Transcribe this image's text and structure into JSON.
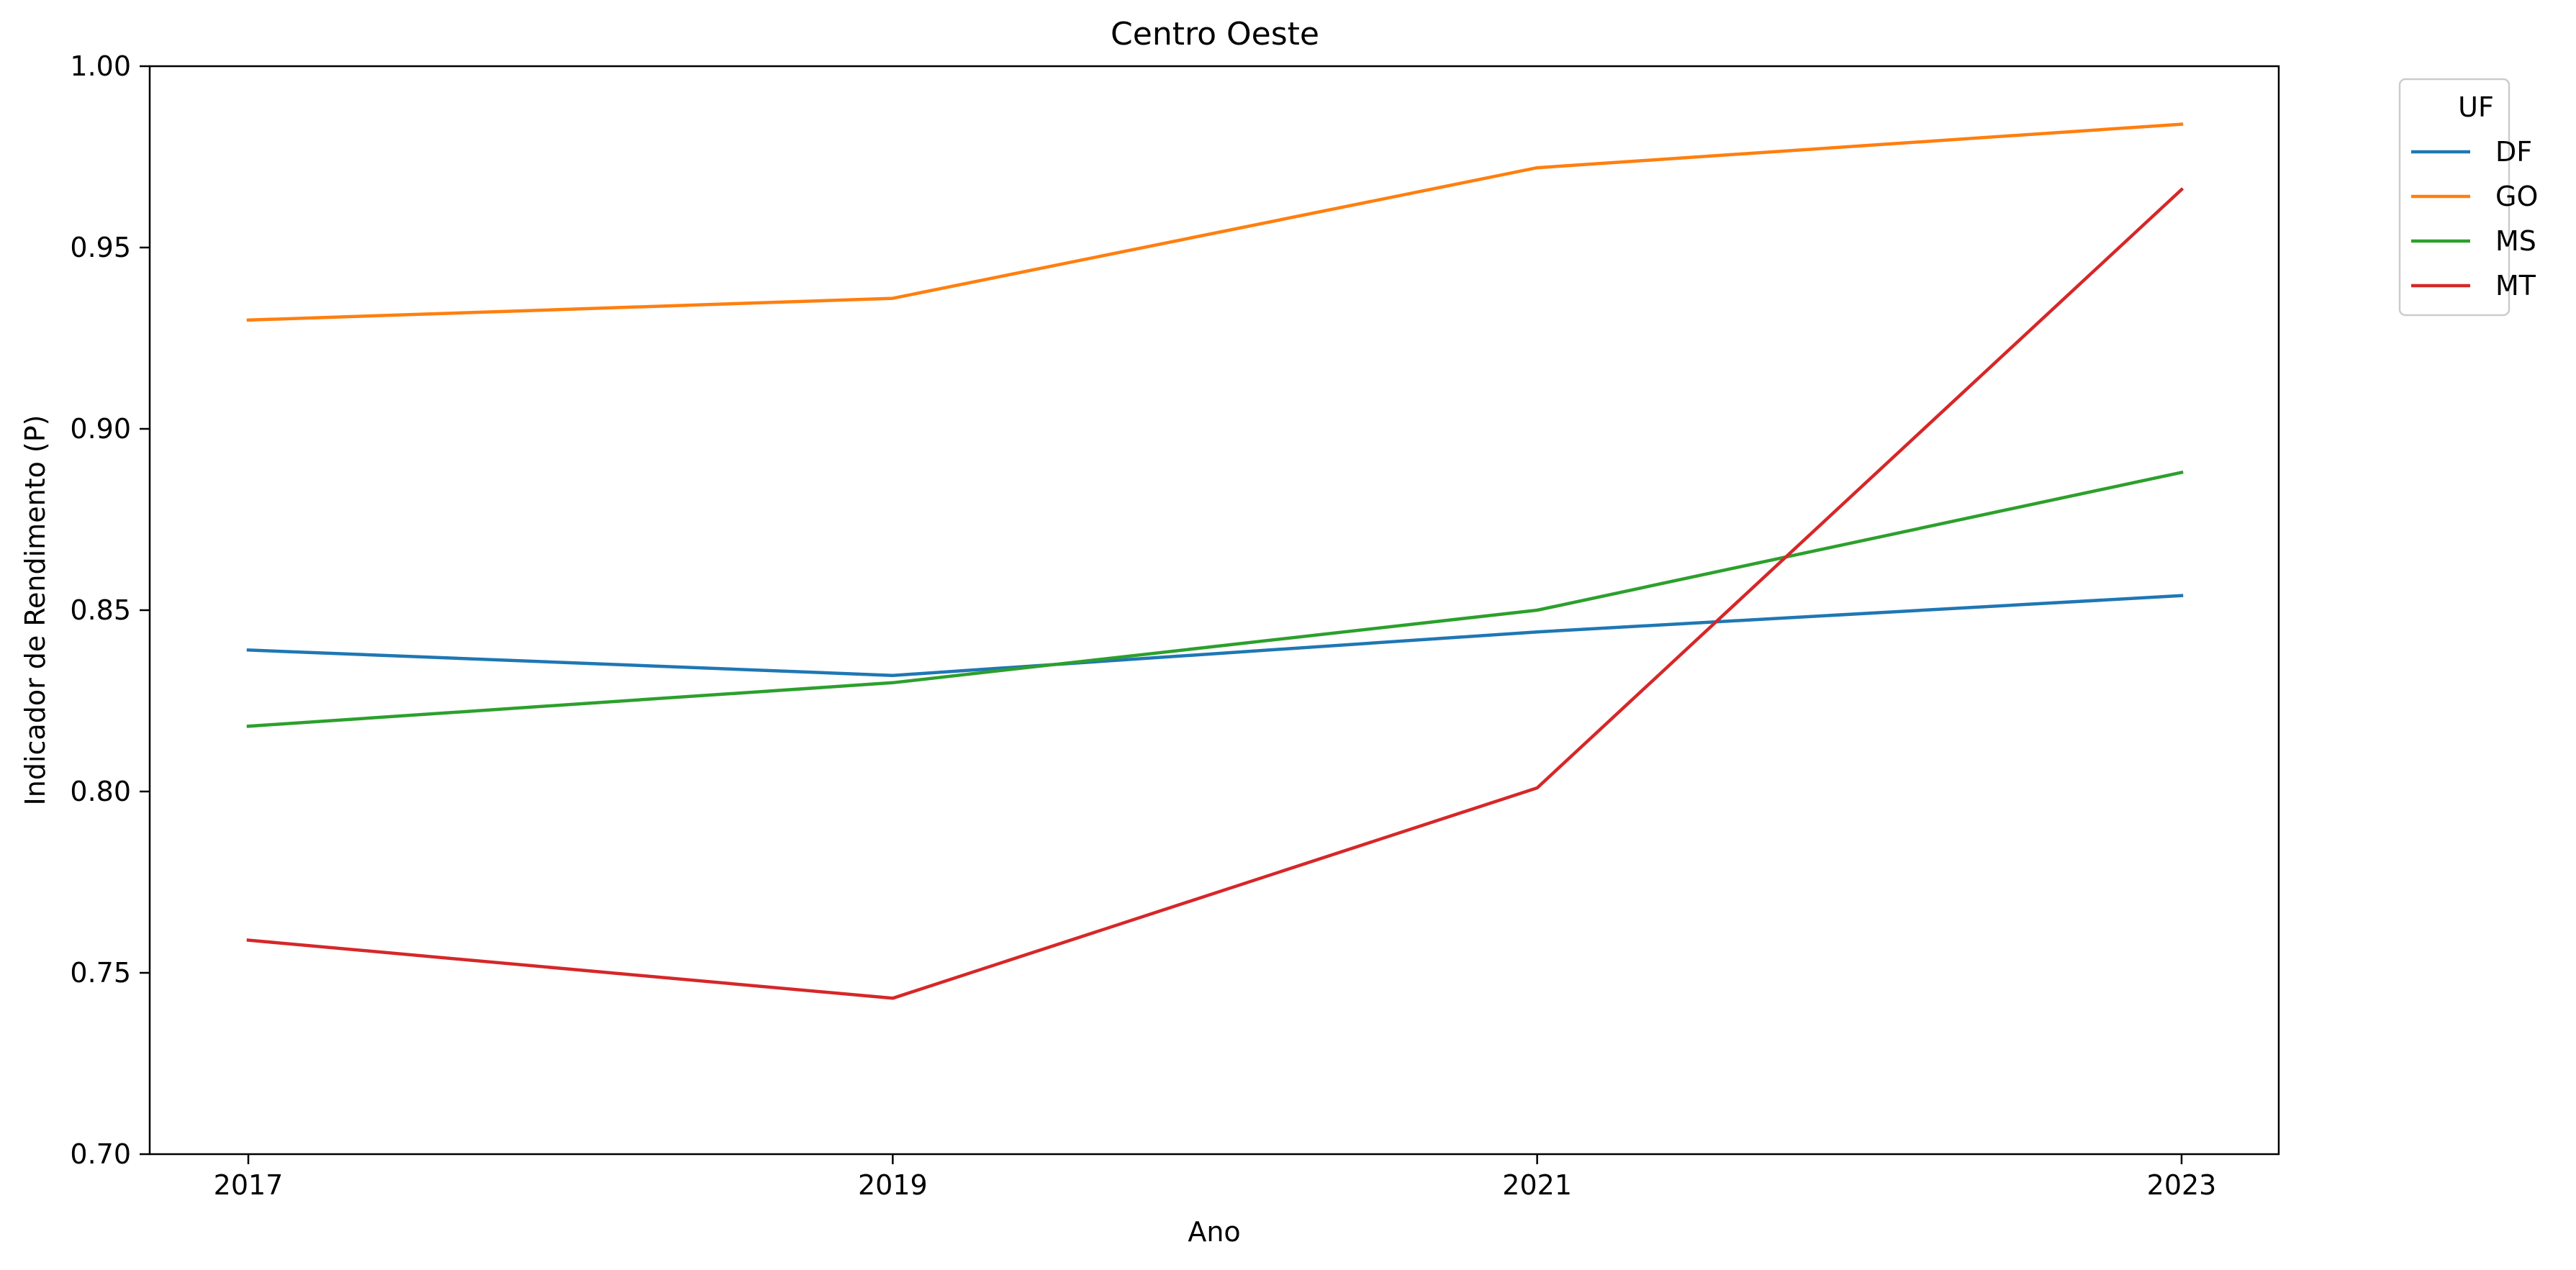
{
  "chart_data": {
    "type": "line",
    "title": "Centro Oeste",
    "xlabel": "Ano",
    "ylabel": "Indicador de Rendimento (P)",
    "x": [
      2017,
      2019,
      2021,
      2023
    ],
    "x_ticks": [
      "2017",
      "2019",
      "2021",
      "2023"
    ],
    "ylim": [
      0.7,
      1.0
    ],
    "y_ticks": [
      "0.70",
      "0.75",
      "0.80",
      "0.85",
      "0.90",
      "0.95",
      "1.00"
    ],
    "grid": false,
    "legend": {
      "title": "UF",
      "placement": "outside-top-right"
    },
    "series": [
      {
        "name": "DF",
        "color": "#1f77b4",
        "values": [
          0.839,
          0.832,
          0.844,
          0.854
        ]
      },
      {
        "name": "GO",
        "color": "#ff7f0e",
        "values": [
          0.93,
          0.936,
          0.972,
          0.984
        ]
      },
      {
        "name": "MS",
        "color": "#2ca02c",
        "values": [
          0.818,
          0.83,
          0.85,
          0.888
        ]
      },
      {
        "name": "MT",
        "color": "#d62728",
        "values": [
          0.759,
          0.743,
          0.801,
          0.966
        ]
      }
    ]
  }
}
